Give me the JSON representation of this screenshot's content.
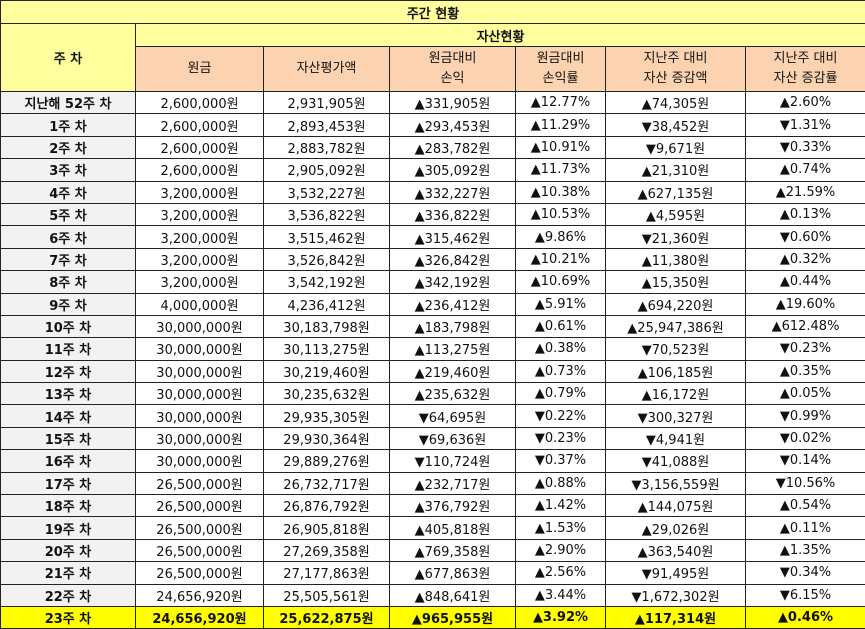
{
  "title": "주간 현황",
  "header": {
    "week_label": "주 차",
    "asset_group": "자산현황",
    "columns": [
      [
        "원금"
      ],
      [
        "자산평가액"
      ],
      [
        "원금대비",
        "손익"
      ],
      [
        "원금대비",
        "손익률"
      ],
      [
        "지난주 대비",
        "자산 증감액"
      ],
      [
        "지난주 대비",
        "자산 증감률"
      ]
    ]
  },
  "rows": [
    {
      "week": "지난해 52주 차",
      "principal": "2,600,000원",
      "value": "2,931,905원",
      "pl": "▲331,905원",
      "pl_rate": "▲12.77%",
      "diff": "▲74,305원",
      "diff_rate": "▲2.60%",
      "pl_dir": "up",
      "diff_dir": "up"
    },
    {
      "week": "1주 차",
      "principal": "2,600,000원",
      "value": "2,893,453원",
      "pl": "▲293,453원",
      "pl_rate": "▲11.29%",
      "diff": "▼38,452원",
      "diff_rate": "▼1.31%",
      "pl_dir": "up",
      "diff_dir": "down"
    },
    {
      "week": "2주 차",
      "principal": "2,600,000원",
      "value": "2,883,782원",
      "pl": "▲283,782원",
      "pl_rate": "▲10.91%",
      "diff": "▼9,671원",
      "diff_rate": "▼0.33%",
      "pl_dir": "up",
      "diff_dir": "down"
    },
    {
      "week": "3주 차",
      "principal": "2,600,000원",
      "value": "2,905,092원",
      "pl": "▲305,092원",
      "pl_rate": "▲11.73%",
      "diff": "▲21,310원",
      "diff_rate": "▲0.74%",
      "pl_dir": "up",
      "diff_dir": "up"
    },
    {
      "week": "4주 차",
      "principal": "3,200,000원",
      "value": "3,532,227원",
      "pl": "▲332,227원",
      "pl_rate": "▲10.38%",
      "diff": "▲627,135원",
      "diff_rate": "▲21.59%",
      "pl_dir": "up",
      "diff_dir": "up"
    },
    {
      "week": "5주 차",
      "principal": "3,200,000원",
      "value": "3,536,822원",
      "pl": "▲336,822원",
      "pl_rate": "▲10.53%",
      "diff": "▲4,595원",
      "diff_rate": "▲0.13%",
      "pl_dir": "up",
      "diff_dir": "up"
    },
    {
      "week": "6주 차",
      "principal": "3,200,000원",
      "value": "3,515,462원",
      "pl": "▲315,462원",
      "pl_rate": "▲9.86%",
      "diff": "▼21,360원",
      "diff_rate": "▼0.60%",
      "pl_dir": "up",
      "diff_dir": "down"
    },
    {
      "week": "7주 차",
      "principal": "3,200,000원",
      "value": "3,526,842원",
      "pl": "▲326,842원",
      "pl_rate": "▲10.21%",
      "diff": "▲11,380원",
      "diff_rate": "▲0.32%",
      "pl_dir": "up",
      "diff_dir": "up"
    },
    {
      "week": "8주 차",
      "principal": "3,200,000원",
      "value": "3,542,192원",
      "pl": "▲342,192원",
      "pl_rate": "▲10.69%",
      "diff": "▲15,350원",
      "diff_rate": "▲0.44%",
      "pl_dir": "up",
      "diff_dir": "up"
    },
    {
      "week": "9주 차",
      "principal": "4,000,000원",
      "value": "4,236,412원",
      "pl": "▲236,412원",
      "pl_rate": "▲5.91%",
      "diff": "▲694,220원",
      "diff_rate": "▲19.60%",
      "pl_dir": "up",
      "diff_dir": "up"
    },
    {
      "week": "10주 차",
      "principal": "30,000,000원",
      "value": "30,183,798원",
      "pl": "▲183,798원",
      "pl_rate": "▲0.61%",
      "diff": "▲25,947,386원",
      "diff_rate": "▲612.48%",
      "pl_dir": "up",
      "diff_dir": "up"
    },
    {
      "week": "11주 차",
      "principal": "30,000,000원",
      "value": "30,113,275원",
      "pl": "▲113,275원",
      "pl_rate": "▲0.38%",
      "diff": "▼70,523원",
      "diff_rate": "▼0.23%",
      "pl_dir": "up",
      "diff_dir": "down"
    },
    {
      "week": "12주 차",
      "principal": "30,000,000원",
      "value": "30,219,460원",
      "pl": "▲219,460원",
      "pl_rate": "▲0.73%",
      "diff": "▲106,185원",
      "diff_rate": "▲0.35%",
      "pl_dir": "up",
      "diff_dir": "up"
    },
    {
      "week": "13주 차",
      "principal": "30,000,000원",
      "value": "30,235,632원",
      "pl": "▲235,632원",
      "pl_rate": "▲0.79%",
      "diff": "▲16,172원",
      "diff_rate": "▲0.05%",
      "pl_dir": "up",
      "diff_dir": "up"
    },
    {
      "week": "14주 차",
      "principal": "30,000,000원",
      "value": "29,935,305원",
      "pl": "▼64,695원",
      "pl_rate": "▼0.22%",
      "diff": "▼300,327원",
      "diff_rate": "▼0.99%",
      "pl_dir": "down",
      "diff_dir": "down"
    },
    {
      "week": "15주 차",
      "principal": "30,000,000원",
      "value": "29,930,364원",
      "pl": "▼69,636원",
      "pl_rate": "▼0.23%",
      "diff": "▼4,941원",
      "diff_rate": "▼0.02%",
      "pl_dir": "down",
      "diff_dir": "down"
    },
    {
      "week": "16주 차",
      "principal": "30,000,000원",
      "value": "29,889,276원",
      "pl": "▼110,724원",
      "pl_rate": "▼0.37%",
      "diff": "▼41,088원",
      "diff_rate": "▼0.14%",
      "pl_dir": "down",
      "diff_dir": "down"
    },
    {
      "week": "17주 차",
      "principal": "26,500,000원",
      "value": "26,732,717원",
      "pl": "▲232,717원",
      "pl_rate": "▲0.88%",
      "diff": "▼3,156,559원",
      "diff_rate": "▼10.56%",
      "pl_dir": "up",
      "diff_dir": "down"
    },
    {
      "week": "18주 차",
      "principal": "26,500,000원",
      "value": "26,876,792원",
      "pl": "▲376,792원",
      "pl_rate": "▲1.42%",
      "diff": "▲144,075원",
      "diff_rate": "▲0.54%",
      "pl_dir": "up",
      "diff_dir": "up"
    },
    {
      "week": "19주 차",
      "principal": "26,500,000원",
      "value": "26,905,818원",
      "pl": "▲405,818원",
      "pl_rate": "▲1.53%",
      "diff": "▲29,026원",
      "diff_rate": "▲0.11%",
      "pl_dir": "up",
      "diff_dir": "up"
    },
    {
      "week": "20주 차",
      "principal": "26,500,000원",
      "value": "27,269,358원",
      "pl": "▲769,358원",
      "pl_rate": "▲2.90%",
      "diff": "▲363,540원",
      "diff_rate": "▲1.35%",
      "pl_dir": "up",
      "diff_dir": "up"
    },
    {
      "week": "21주 차",
      "principal": "26,500,000원",
      "value": "27,177,863원",
      "pl": "▲677,863원",
      "pl_rate": "▲2.56%",
      "diff": "▼91,495원",
      "diff_rate": "▼0.34%",
      "pl_dir": "up",
      "diff_dir": "down"
    },
    {
      "week": "22주 차",
      "principal": "24,656,920원",
      "value": "25,505,561원",
      "pl": "▲848,641원",
      "pl_rate": "▲3.44%",
      "diff": "▼1,672,302원",
      "diff_rate": "▼6.15%",
      "pl_dir": "up",
      "diff_dir": "down"
    },
    {
      "week": "23주 차",
      "principal": "24,656,920원",
      "value": "25,622,875원",
      "pl": "▲965,955원",
      "pl_rate": "▲3.92%",
      "diff": "▲117,314원",
      "diff_rate": "▲0.46%",
      "pl_dir": "up",
      "diff_dir": "up",
      "current": true
    }
  ],
  "colors": {
    "title_bg": "#ffff9e",
    "column_header_bg": "#fbd3b0",
    "week_col_bg": "#f2f2f2",
    "current_row_bg": "#ffff00",
    "increase": "#e00000",
    "decrease": "#1a1adc"
  }
}
